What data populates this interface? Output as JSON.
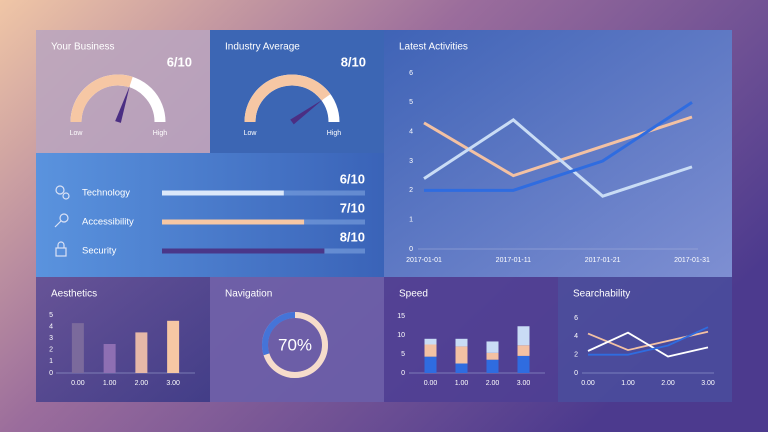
{
  "chart_data": [
    {
      "type": "gauge",
      "title": "Your Business",
      "values": [
        6
      ],
      "value_labels": [
        "6/10"
      ],
      "ylim": [
        0,
        10
      ],
      "range_labels": [
        "Low",
        "High"
      ],
      "color": "#f6c7a4"
    },
    {
      "type": "gauge",
      "title": "Industry Average",
      "values": [
        8
      ],
      "value_labels": [
        "8/10"
      ],
      "ylim": [
        0,
        10
      ],
      "range_labels": [
        "Low",
        "High"
      ],
      "color": "#f6c7a4"
    },
    {
      "type": "hbar",
      "categories": [
        "Technology",
        "Accessibility",
        "Security"
      ],
      "values": [
        6,
        7,
        8
      ],
      "value_labels": [
        "6/10",
        "7/10",
        "8/10"
      ],
      "xlim": [
        0,
        10
      ],
      "colors": [
        "#dbe8fa",
        "#f6c7a4",
        "#4a3789"
      ]
    },
    {
      "type": "line",
      "title": "Latest Activities",
      "categories": [
        "2017-01-01",
        "2017-01-11",
        "2017-01-21",
        "2017-01-31"
      ],
      "ylim": [
        0,
        6
      ],
      "yticks": [
        0,
        1,
        2,
        3,
        4,
        5,
        6
      ],
      "series": [
        {
          "color": "#f3c1a3",
          "values": [
            4.3,
            2.5,
            3.5,
            4.5
          ]
        },
        {
          "color": "#c9dcf5",
          "values": [
            2.4,
            4.4,
            1.8,
            2.8
          ]
        },
        {
          "color": "#2f6ce0",
          "values": [
            2,
            2,
            3,
            5
          ]
        }
      ]
    },
    {
      "type": "bar",
      "title": "Aesthetics",
      "categories": [
        "0.00",
        "1.00",
        "2.00",
        "3.00"
      ],
      "values": [
        4.3,
        2.5,
        3.5,
        4.5
      ],
      "ylim": [
        0,
        5
      ],
      "yticks": [
        0,
        1,
        2,
        3,
        4,
        5
      ],
      "colors": [
        "#7b6a9c",
        "#8e6fb3",
        "#e6b8a8",
        "#f6c7a4"
      ]
    },
    {
      "type": "donut",
      "title": "Navigation",
      "values": [
        70
      ],
      "value_labels": [
        "70%"
      ],
      "ylim": [
        0,
        100
      ],
      "color": "#f6dccb"
    },
    {
      "type": "stacked",
      "title": "Speed",
      "categories": [
        "0.00",
        "1.00",
        "2.00",
        "3.00"
      ],
      "ylim": [
        0,
        15
      ],
      "yticks": [
        0,
        5,
        10,
        15
      ],
      "series": [
        {
          "color": "#2f6ce0",
          "values": [
            4.3,
            2.5,
            3.5,
            4.5
          ]
        },
        {
          "color": "#f3c1a3",
          "values": [
            3.2,
            4.5,
            1.8,
            2.8
          ]
        },
        {
          "color": "#c9dcf5",
          "values": [
            1.5,
            2,
            3,
            5
          ]
        }
      ]
    },
    {
      "type": "line",
      "title": "Searchability",
      "categories": [
        "0.00",
        "1.00",
        "2.00",
        "3.00"
      ],
      "ylim": [
        0,
        6
      ],
      "yticks": [
        0,
        2,
        4,
        6
      ],
      "series": [
        {
          "color": "#f3c1a3",
          "values": [
            4.3,
            2.5,
            3.5,
            4.5
          ]
        },
        {
          "color": "#ffffff",
          "values": [
            2.4,
            4.4,
            1.8,
            2.8
          ]
        },
        {
          "color": "#2f6ce0",
          "values": [
            2,
            2,
            3,
            5
          ]
        }
      ]
    }
  ]
}
